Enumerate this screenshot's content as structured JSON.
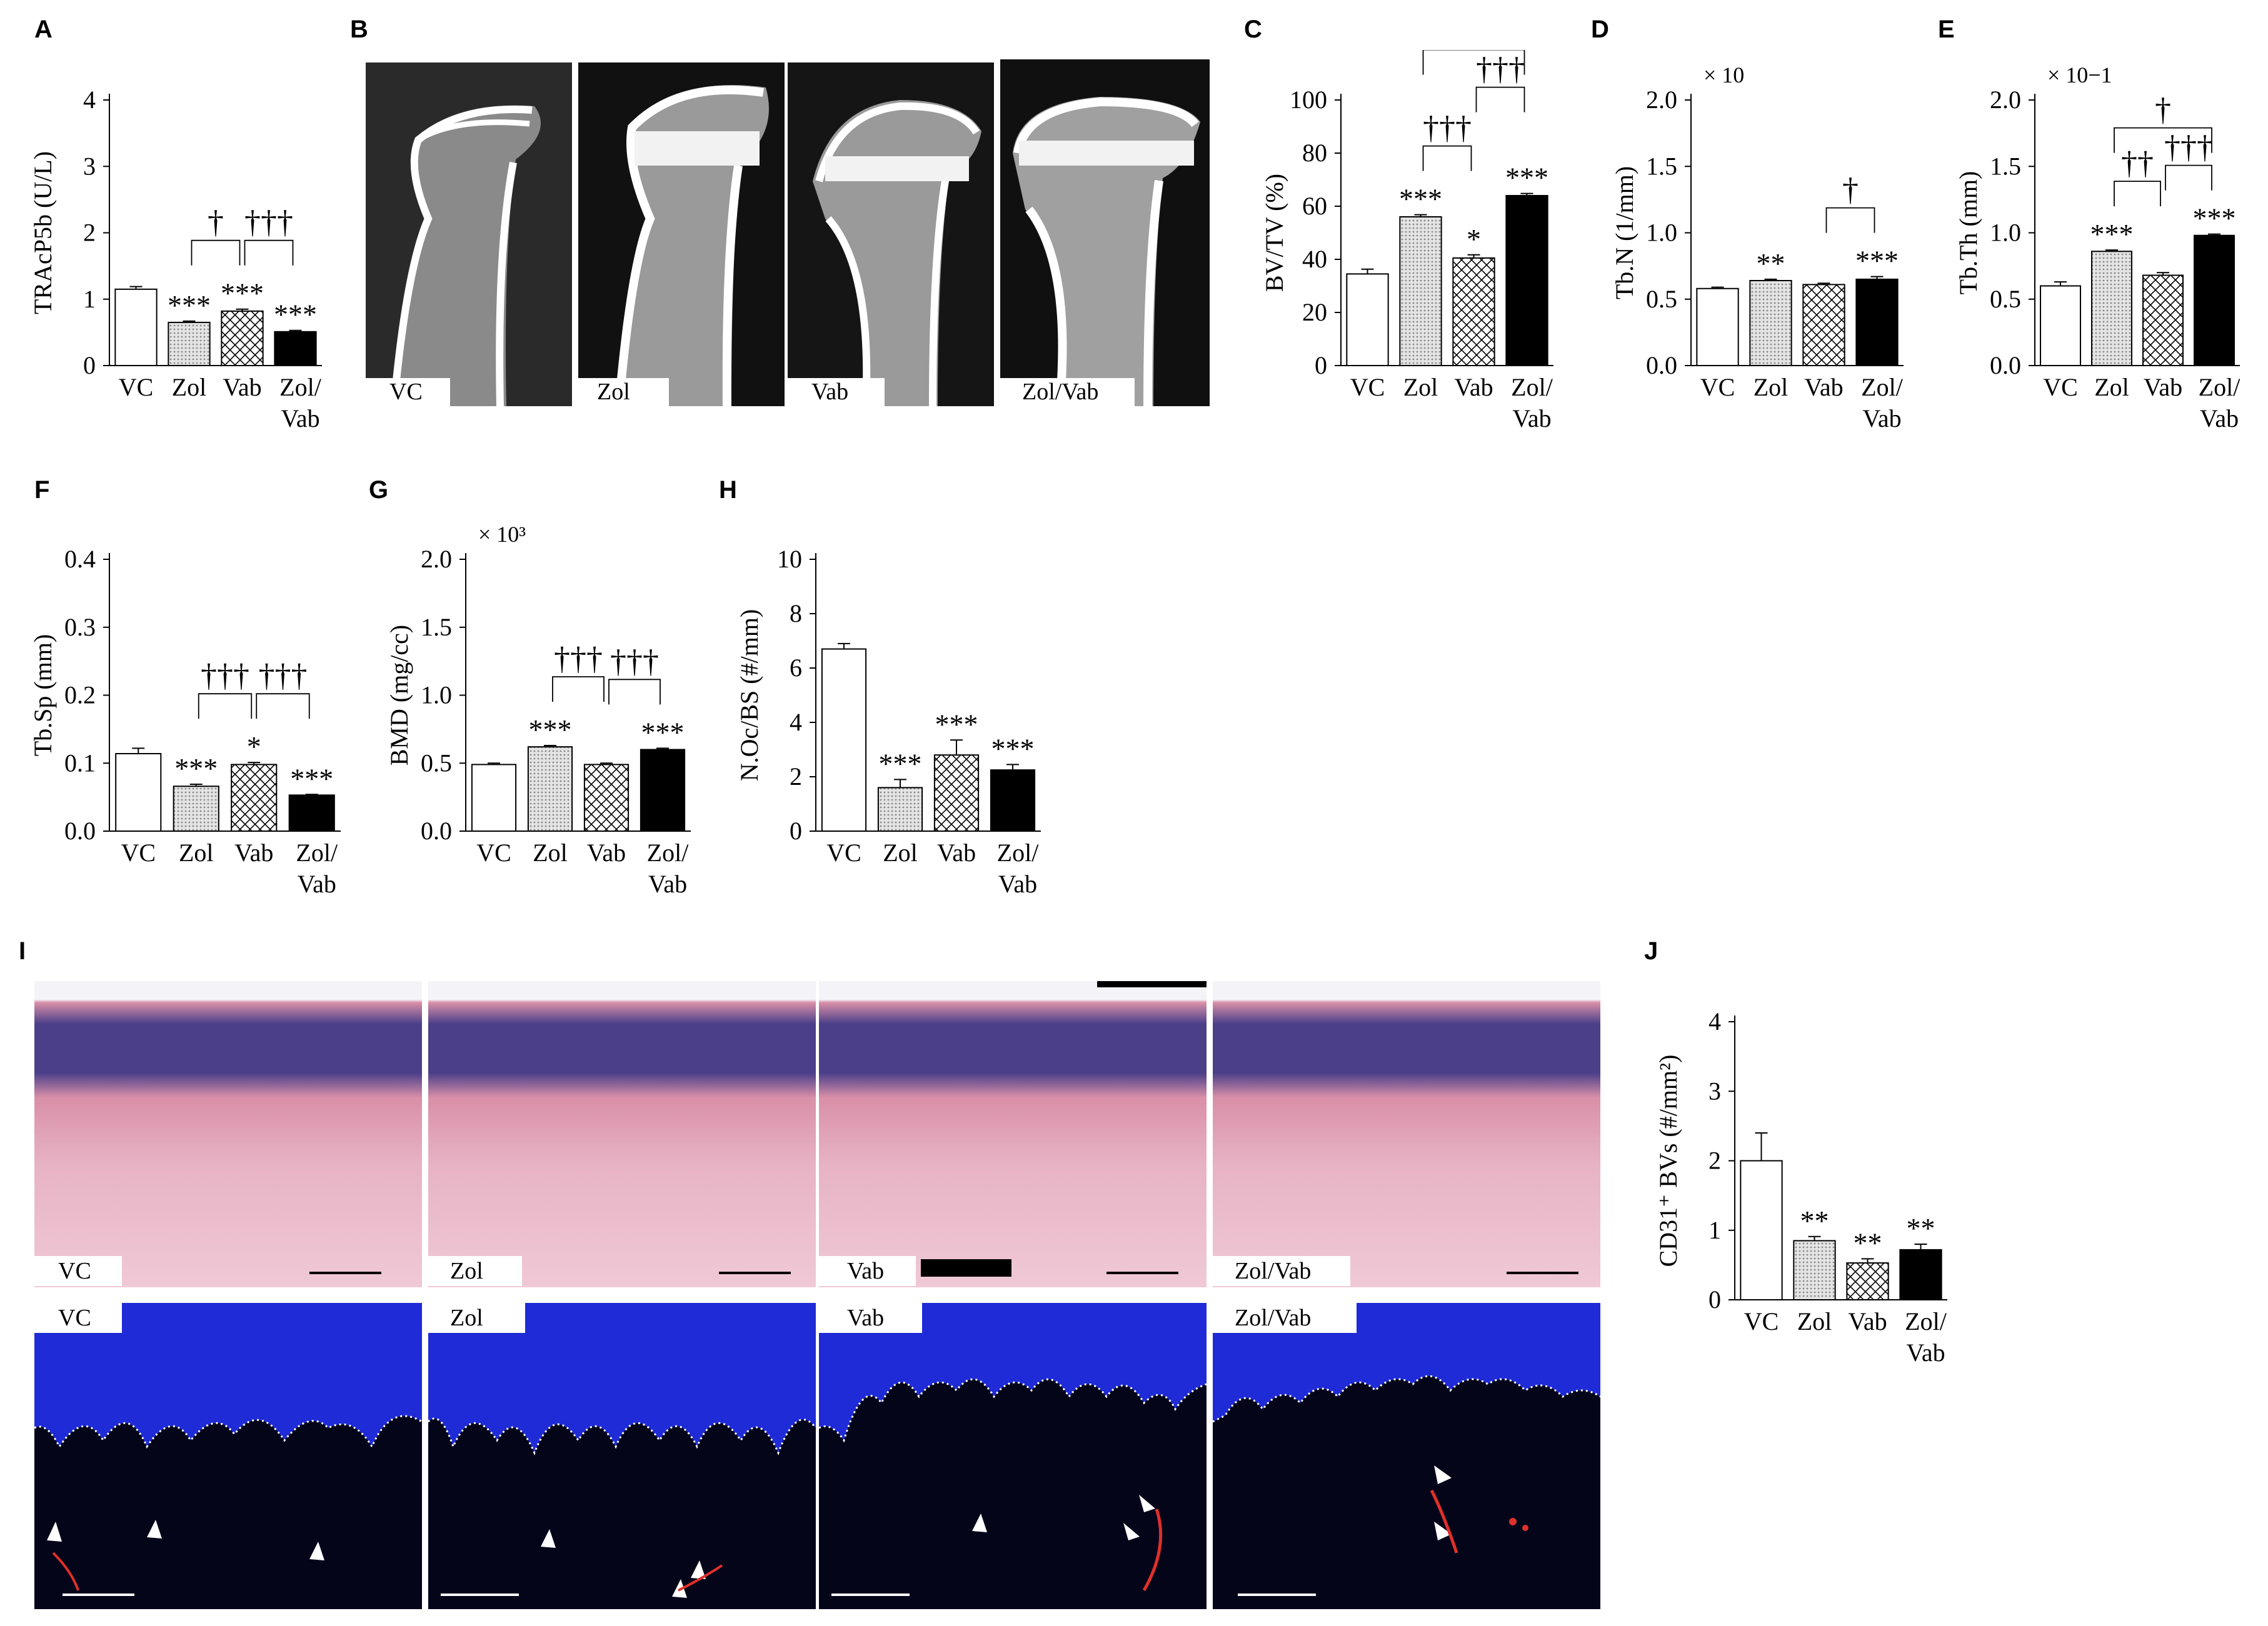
{
  "panels": {
    "A": "A",
    "B": "B",
    "C": "C",
    "D": "D",
    "E": "E",
    "F": "F",
    "G": "G",
    "H": "H",
    "I": "I",
    "J": "J"
  },
  "microct_labels": [
    "VC",
    "Zol",
    "Vab",
    "Zol/Vab"
  ],
  "he_labels": [
    "VC",
    "Zol",
    "Vab",
    "Zol/Vab"
  ],
  "if_labels": [
    "VC",
    "Zol",
    "Vab",
    "Zol/Vab"
  ],
  "colors": {
    "vc": "#ffffff",
    "zol_pattern": "#c8c8c8",
    "vab_pattern": "#000000",
    "zolvab": "#000000",
    "he_tissue": "#d98fa8",
    "he_nuclei": "#4b3f8a",
    "if_background": "#05051a",
    "if_nuclei": "#1e2bd6",
    "if_cd31": "#e0302a"
  },
  "chart_data": [
    {
      "panel": "A",
      "type": "bar",
      "categories": [
        "VC",
        "Zol",
        "Vab",
        "Zol/Vab"
      ],
      "values": [
        1.15,
        0.65,
        0.82,
        0.51
      ],
      "errors": [
        0.04,
        0.02,
        0.03,
        0.02
      ],
      "ylabel": "TRAcP5b (U/L)",
      "ylim": [
        0,
        4
      ],
      "yticks": [
        "0",
        "1",
        "2",
        "3",
        "4"
      ],
      "multiplier": "",
      "stars": [
        "",
        "***",
        "***",
        "***"
      ],
      "daggers": [
        {
          "from": 1,
          "to": 2,
          "label": "†",
          "level": 0
        },
        {
          "from": 2,
          "to": 3,
          "label": "†††",
          "level": 0
        }
      ]
    },
    {
      "panel": "C",
      "type": "bar",
      "categories": [
        "VC",
        "Zol",
        "Vab",
        "Zol/Vab"
      ],
      "values": [
        34.5,
        56.0,
        40.5,
        64.0
      ],
      "errors": [
        1.8,
        0.8,
        1.2,
        0.8
      ],
      "ylabel": "BV/TV (%)",
      "ylim": [
        0,
        100
      ],
      "yticks": [
        "0",
        "20",
        "40",
        "60",
        "80",
        "100"
      ],
      "multiplier": "",
      "stars": [
        "",
        "***",
        "*",
        "***"
      ],
      "daggers": [
        {
          "from": 1,
          "to": 2,
          "label": "†††",
          "level": 0
        },
        {
          "from": 2,
          "to": 3,
          "label": "†††",
          "level": 1
        },
        {
          "from": 1,
          "to": 3,
          "label": "†",
          "level": 2
        }
      ]
    },
    {
      "panel": "D",
      "type": "bar",
      "categories": [
        "VC",
        "Zol",
        "Vab",
        "Zol/Vab"
      ],
      "values": [
        0.58,
        0.64,
        0.61,
        0.65
      ],
      "errors": [
        0.01,
        0.01,
        0.01,
        0.02
      ],
      "ylabel": "Tb.N (1/mm)",
      "ylim": [
        0,
        2.0
      ],
      "yticks": [
        "0.0",
        "0.5",
        "1.0",
        "1.5",
        "2.0"
      ],
      "multiplier": "× 10",
      "stars": [
        "",
        "**",
        "",
        "***"
      ],
      "daggers": [
        {
          "from": 2,
          "to": 3,
          "label": "†",
          "level": 0
        }
      ]
    },
    {
      "panel": "E",
      "type": "bar",
      "categories": [
        "VC",
        "Zol",
        "Vab",
        "Zol/Vab"
      ],
      "values": [
        0.6,
        0.86,
        0.68,
        0.98
      ],
      "errors": [
        0.03,
        0.01,
        0.02,
        0.01
      ],
      "ylabel": "Tb.Th (mm)",
      "ylim": [
        0,
        2.0
      ],
      "yticks": [
        "0.0",
        "0.5",
        "1.0",
        "1.5",
        "2.0"
      ],
      "multiplier": "× 10−1",
      "stars": [
        "",
        "***",
        "",
        "***"
      ],
      "daggers": [
        {
          "from": 1,
          "to": 2,
          "label": "††",
          "level": 0
        },
        {
          "from": 2,
          "to": 3,
          "label": "†††",
          "level": 0
        },
        {
          "from": 1,
          "to": 3,
          "label": "†",
          "level": 1
        }
      ]
    },
    {
      "panel": "F",
      "type": "bar",
      "categories": [
        "VC",
        "Zol",
        "Vab",
        "Zol/Vab"
      ],
      "values": [
        0.114,
        0.066,
        0.098,
        0.053
      ],
      "errors": [
        0.008,
        0.003,
        0.003,
        0.001
      ],
      "ylabel": "Tb.Sp (mm)",
      "ylim": [
        0,
        0.4
      ],
      "yticks": [
        "0.0",
        "0.1",
        "0.2",
        "0.3",
        "0.4"
      ],
      "multiplier": "",
      "stars": [
        "",
        "***",
        "*",
        "***"
      ],
      "daggers": [
        {
          "from": 1,
          "to": 2,
          "label": "†††",
          "level": 0
        },
        {
          "from": 2,
          "to": 3,
          "label": "†††",
          "level": 0
        }
      ]
    },
    {
      "panel": "G",
      "type": "bar",
      "categories": [
        "VC",
        "Zol",
        "Vab",
        "Zol/Vab"
      ],
      "values": [
        0.49,
        0.62,
        0.49,
        0.6
      ],
      "errors": [
        0.01,
        0.01,
        0.01,
        0.01
      ],
      "ylabel": "BMD (mg/cc)",
      "ylim": [
        0,
        2.0
      ],
      "yticks": [
        "0.0",
        "0.5",
        "1.0",
        "1.5",
        "2.0"
      ],
      "multiplier": "× 10³",
      "stars": [
        "",
        "***",
        "",
        "***"
      ],
      "daggers": [
        {
          "from": 1,
          "to": 2,
          "label": "†††",
          "level": 0
        },
        {
          "from": 2,
          "to": 3,
          "label": "†††",
          "level": 0
        }
      ]
    },
    {
      "panel": "H",
      "type": "bar",
      "categories": [
        "VC",
        "Zol",
        "Vab",
        "Zol/Vab"
      ],
      "values": [
        6.7,
        1.6,
        2.8,
        2.25
      ],
      "errors": [
        0.2,
        0.3,
        0.55,
        0.2
      ],
      "ylabel": "N.Oc/BS (#/mm)",
      "ylim": [
        0,
        10
      ],
      "yticks": [
        "0",
        "2",
        "4",
        "6",
        "8",
        "10"
      ],
      "multiplier": "",
      "stars": [
        "",
        "***",
        "***",
        "***"
      ],
      "daggers": []
    },
    {
      "panel": "J",
      "type": "bar",
      "categories": [
        "VC",
        "Zol",
        "Vab",
        "Zol/Vab"
      ],
      "values": [
        2.0,
        0.85,
        0.53,
        0.72
      ],
      "errors": [
        0.4,
        0.06,
        0.06,
        0.08
      ],
      "ylabel": "CD31⁺ BVs (#/mm²)",
      "ylim": [
        0,
        4
      ],
      "yticks": [
        "0",
        "1",
        "2",
        "3",
        "4"
      ],
      "multiplier": "",
      "stars": [
        "",
        "**",
        "**",
        "**"
      ],
      "daggers": []
    }
  ]
}
